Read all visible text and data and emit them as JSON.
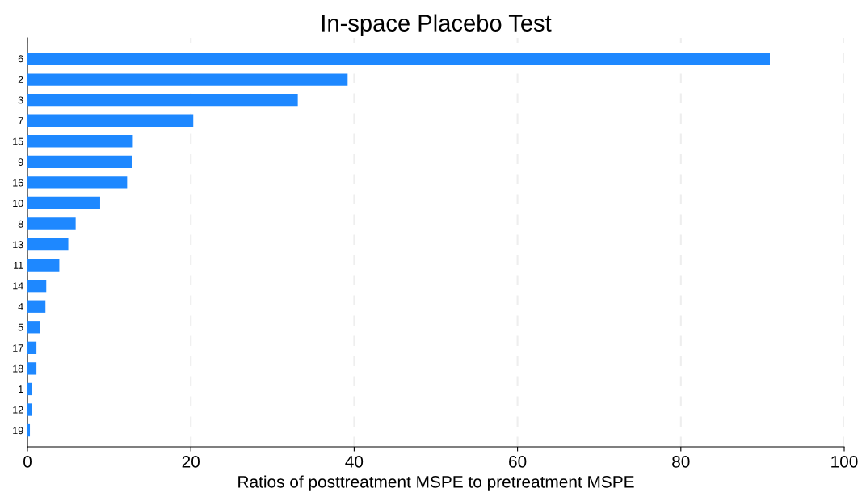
{
  "chart_data": {
    "type": "bar",
    "orientation": "horizontal",
    "title": "In-space Placebo Test",
    "xlabel": "Ratios of posttreatment MSPE to pretreatment MSPE",
    "categories": [
      "6",
      "2",
      "3",
      "7",
      "15",
      "9",
      "16",
      "10",
      "8",
      "13",
      "11",
      "14",
      "4",
      "5",
      "17",
      "18",
      "1",
      "12",
      "19"
    ],
    "values": [
      90.9,
      39.2,
      33.1,
      20.3,
      12.9,
      12.8,
      12.2,
      8.9,
      5.9,
      5.0,
      3.9,
      2.3,
      2.2,
      1.5,
      1.1,
      1.1,
      0.5,
      0.5,
      0.3
    ],
    "color": "#1e88ff",
    "xlim": [
      0,
      100
    ],
    "xticks": [
      0,
      20,
      40,
      60,
      80,
      100
    ],
    "grid": "x",
    "legend": false
  }
}
